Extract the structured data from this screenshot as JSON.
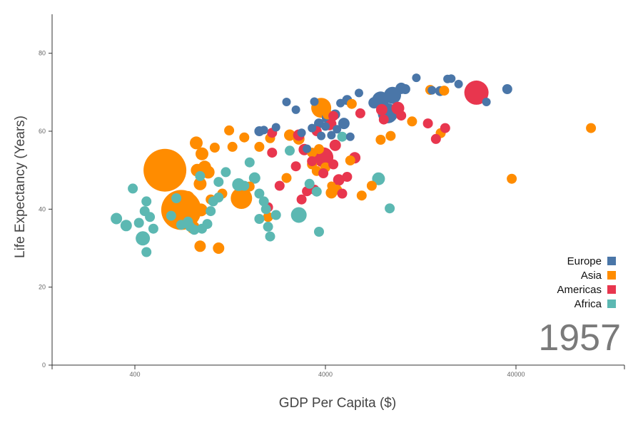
{
  "chart_data": {
    "type": "scatter",
    "title": "",
    "year": "1957",
    "xlabel": "GDP Per Capita ($)",
    "ylabel": "Life Expectancy (Years)",
    "x_scale": "log",
    "xlim": [
      142,
      150000
    ],
    "ylim": [
      0,
      90
    ],
    "x_ticks": [
      {
        "value": 400,
        "label": "400"
      },
      {
        "value": 4000,
        "label": "4000"
      },
      {
        "value": 40000,
        "label": "40000"
      }
    ],
    "y_ticks": [
      {
        "value": 0,
        "label": "0"
      },
      {
        "value": 20,
        "label": "20"
      },
      {
        "value": 40,
        "label": "40"
      },
      {
        "value": 60,
        "label": "60"
      },
      {
        "value": 80,
        "label": "80"
      }
    ],
    "legend_position": "bottom-right",
    "colors": {
      "Europe": "#4a76a8",
      "Asia": "#ff8c00",
      "Americas": "#e8364e",
      "Africa": "#5cb8b2"
    },
    "series": [
      {
        "name": "Europe",
        "color": "#4a76a8",
        "points": [
          [
            17500,
            73.4,
            6
          ],
          [
            20000,
            72.1,
            6
          ],
          [
            16000,
            70.3,
            7
          ],
          [
            12000,
            73.7,
            6
          ],
          [
            10500,
            70.8,
            7
          ],
          [
            9000,
            69.2,
            12
          ],
          [
            10000,
            71.0,
            8
          ],
          [
            7800,
            68.0,
            12
          ],
          [
            7200,
            67.3,
            8
          ],
          [
            8500,
            64.6,
            14
          ],
          [
            14500,
            70.5,
            6
          ],
          [
            18300,
            73.5,
            6
          ],
          [
            36000,
            70.8,
            7
          ],
          [
            28000,
            67.5,
            6
          ],
          [
            6000,
            69.8,
            6
          ],
          [
            5200,
            68.0,
            7
          ],
          [
            4800,
            67.2,
            6
          ],
          [
            4500,
            64.3,
            7
          ],
          [
            4000,
            61.2,
            6
          ],
          [
            3400,
            60.8,
            6
          ],
          [
            3700,
            62.0,
            7
          ],
          [
            3000,
            59.6,
            6
          ],
          [
            2800,
            65.5,
            6
          ],
          [
            2200,
            61.0,
            6
          ],
          [
            1900,
            60.3,
            6
          ],
          [
            1800,
            60.0,
            7
          ],
          [
            4300,
            59.0,
            6
          ],
          [
            3200,
            55.5,
            6
          ],
          [
            4100,
            63.5,
            8
          ],
          [
            5400,
            58.6,
            6
          ],
          [
            2500,
            67.5,
            6
          ],
          [
            3800,
            58.8,
            6
          ],
          [
            5000,
            62.0,
            8
          ],
          [
            3500,
            67.6,
            6
          ],
          [
            4600,
            60.5,
            6
          ]
        ]
      },
      {
        "name": "Asia",
        "color": "#ff8c00",
        "points": [
          [
            575,
            50.0,
            30
          ],
          [
            700,
            39.8,
            28
          ],
          [
            840,
            57.0,
            9
          ],
          [
            900,
            54.2,
            9
          ],
          [
            930,
            50.8,
            9
          ],
          [
            970,
            49.5,
            9
          ],
          [
            850,
            50.0,
            9
          ],
          [
            880,
            46.5,
            9
          ],
          [
            760,
            43.0,
            9
          ],
          [
            890,
            39.8,
            9
          ],
          [
            810,
            35.3,
            9
          ],
          [
            880,
            30.5,
            8
          ],
          [
            1100,
            30.0,
            8
          ],
          [
            1000,
            42.5,
            7
          ],
          [
            1150,
            44.0,
            7
          ],
          [
            1050,
            55.8,
            7
          ],
          [
            1250,
            60.2,
            7
          ],
          [
            1300,
            56.0,
            7
          ],
          [
            1450,
            42.8,
            15
          ],
          [
            1500,
            58.4,
            7
          ],
          [
            1800,
            56.0,
            7
          ],
          [
            2050,
            58.2,
            7
          ],
          [
            2600,
            59.0,
            8
          ],
          [
            2900,
            58.0,
            8
          ],
          [
            3800,
            66.0,
            14
          ],
          [
            4100,
            64.3,
            7
          ],
          [
            4000,
            50.7,
            7
          ],
          [
            4300,
            44.2,
            8
          ],
          [
            3700,
            55.4,
            7
          ],
          [
            4300,
            46.0,
            6
          ],
          [
            4600,
            45.0,
            7
          ],
          [
            5400,
            52.5,
            7
          ],
          [
            6200,
            43.5,
            7
          ],
          [
            7000,
            46.0,
            7
          ],
          [
            7800,
            57.8,
            7
          ],
          [
            8800,
            58.8,
            7
          ],
          [
            11400,
            62.5,
            7
          ],
          [
            14200,
            70.6,
            7
          ],
          [
            16800,
            70.4,
            7
          ],
          [
            16100,
            59.5,
            7
          ],
          [
            3400,
            54.5,
            7
          ],
          [
            38000,
            47.8,
            7
          ],
          [
            99000,
            60.8,
            7
          ],
          [
            2000,
            38.0,
            7
          ],
          [
            3400,
            51.5,
            7
          ],
          [
            1600,
            45.8,
            7
          ],
          [
            2500,
            48.0,
            7
          ],
          [
            5500,
            67.0,
            7
          ],
          [
            3600,
            49.8,
            7
          ]
        ]
      },
      {
        "name": "Americas",
        "color": "#e8364e",
        "points": [
          [
            24800,
            69.9,
            17
          ],
          [
            9600,
            65.9,
            9
          ],
          [
            6100,
            64.6,
            7
          ],
          [
            10000,
            64.0,
            7
          ],
          [
            7900,
            65.5,
            8
          ],
          [
            3900,
            53.3,
            14
          ],
          [
            4500,
            56.4,
            8
          ],
          [
            5700,
            53.2,
            8
          ],
          [
            4300,
            61.9,
            7
          ],
          [
            3100,
            55.3,
            8
          ],
          [
            3400,
            52.3,
            7
          ],
          [
            5200,
            48.3,
            7
          ],
          [
            3900,
            49.2,
            7
          ],
          [
            4700,
            47.5,
            8
          ],
          [
            3500,
            45.0,
            7
          ],
          [
            4900,
            44.0,
            7
          ],
          [
            2900,
            59.0,
            8
          ],
          [
            2100,
            54.5,
            7
          ],
          [
            2100,
            59.6,
            7
          ],
          [
            2800,
            51.0,
            7
          ],
          [
            3200,
            44.6,
            7
          ],
          [
            3600,
            60.0,
            7
          ],
          [
            2300,
            46.0,
            7
          ],
          [
            13800,
            62.0,
            7
          ],
          [
            15200,
            58.0,
            7
          ],
          [
            17000,
            60.8,
            7
          ],
          [
            8100,
            63.0,
            7
          ],
          [
            4400,
            63.9,
            7
          ],
          [
            4200,
            61.5,
            7
          ],
          [
            3000,
            42.5,
            7
          ],
          [
            2000,
            40.5,
            7
          ],
          [
            4400,
            51.5,
            7
          ]
        ]
      },
      {
        "name": "Africa",
        "color": "#5cb8b2",
        "points": [
          [
            320,
            37.6,
            8
          ],
          [
            360,
            35.8,
            8
          ],
          [
            390,
            45.3,
            7
          ],
          [
            420,
            36.5,
            7
          ],
          [
            440,
            32.5,
            10
          ],
          [
            480,
            38.0,
            7
          ],
          [
            500,
            35.0,
            7
          ],
          [
            460,
            29.0,
            7
          ],
          [
            450,
            39.5,
            7
          ],
          [
            460,
            42.0,
            7
          ],
          [
            440,
            33.0,
            7
          ],
          [
            620,
            38.3,
            7
          ],
          [
            660,
            42.8,
            7
          ],
          [
            700,
            36.0,
            7
          ],
          [
            760,
            36.8,
            7
          ],
          [
            780,
            35.5,
            7
          ],
          [
            820,
            34.7,
            7
          ],
          [
            900,
            35.0,
            7
          ],
          [
            960,
            36.2,
            7
          ],
          [
            1000,
            39.5,
            7
          ],
          [
            1030,
            42.0,
            7
          ],
          [
            1100,
            43.0,
            7
          ],
          [
            1200,
            49.5,
            7
          ],
          [
            1400,
            46.3,
            9
          ],
          [
            1500,
            46.0,
            7
          ],
          [
            1700,
            48.0,
            8
          ],
          [
            1800,
            44.0,
            7
          ],
          [
            1900,
            42.0,
            7
          ],
          [
            1950,
            40.0,
            7
          ],
          [
            1800,
            37.5,
            7
          ],
          [
            2000,
            35.5,
            7
          ],
          [
            2050,
            33.0,
            7
          ],
          [
            2200,
            38.5,
            7
          ],
          [
            2600,
            55.0,
            7
          ],
          [
            2900,
            38.5,
            11
          ],
          [
            3300,
            46.5,
            7
          ],
          [
            3600,
            44.5,
            7
          ],
          [
            3700,
            34.2,
            7
          ],
          [
            1600,
            52.0,
            7
          ],
          [
            4900,
            58.6,
            7
          ],
          [
            7600,
            47.8,
            9
          ],
          [
            8700,
            40.2,
            7
          ],
          [
            880,
            48.5,
            7
          ],
          [
            1100,
            47.0,
            7
          ]
        ]
      }
    ]
  }
}
